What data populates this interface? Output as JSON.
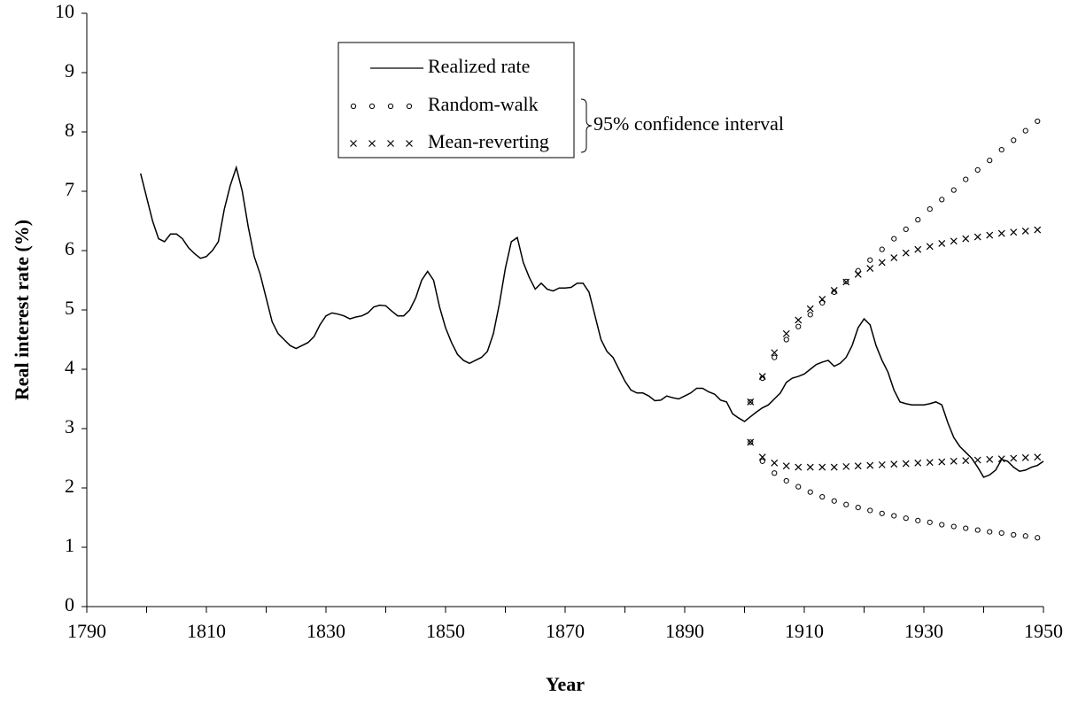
{
  "chart_data": {
    "type": "line",
    "xlabel": "Year",
    "ylabel": "Real interest rate (%)",
    "xlim": [
      1790,
      1950
    ],
    "xticks": [
      1790,
      1810,
      1830,
      1850,
      1870,
      1890,
      1910,
      1930,
      1950
    ],
    "xminorticks": [
      1800,
      1820,
      1840,
      1860,
      1880,
      1900,
      1920,
      1940
    ],
    "ylim": [
      0,
      10
    ],
    "yticks": [
      0,
      1,
      2,
      3,
      4,
      5,
      6,
      7,
      8,
      9,
      10
    ],
    "grid": false,
    "legend": "top-center",
    "annotation": "95% confidence interval",
    "series": [
      {
        "name": "Realized rate",
        "style": "line",
        "color": "#000000",
        "x": [
          1799,
          1801,
          1802,
          1803,
          1804,
          1805,
          1806,
          1807,
          1808,
          1809,
          1810,
          1811,
          1812,
          1813,
          1814,
          1815,
          1816,
          1817,
          1818,
          1819,
          1820,
          1821,
          1822,
          1823,
          1824,
          1825,
          1826,
          1827,
          1828,
          1829,
          1830,
          1831,
          1832,
          1833,
          1834,
          1835,
          1836,
          1837,
          1838,
          1839,
          1840,
          1841,
          1842,
          1843,
          1844,
          1845,
          1846,
          1847,
          1848,
          1849,
          1850,
          1851,
          1852,
          1853,
          1854,
          1855,
          1856,
          1857,
          1858,
          1859,
          1860,
          1861,
          1862,
          1863,
          1864,
          1865,
          1866,
          1867,
          1868,
          1869,
          1870,
          1871,
          1872,
          1873,
          1874,
          1875,
          1876,
          1877,
          1878,
          1879,
          1880,
          1881,
          1882,
          1883,
          1884,
          1885,
          1886,
          1887,
          1888,
          1889,
          1890,
          1891,
          1892,
          1893,
          1894,
          1895,
          1896,
          1897,
          1898,
          1899,
          1900,
          1901,
          1902,
          1903,
          1904,
          1905,
          1906,
          1907,
          1908,
          1909,
          1910,
          1911,
          1912,
          1913,
          1914,
          1915,
          1916,
          1917,
          1918,
          1919,
          1920,
          1921,
          1922,
          1923,
          1924,
          1925,
          1926,
          1927,
          1928,
          1929,
          1930,
          1931,
          1932,
          1933,
          1934,
          1935,
          1936,
          1937,
          1938,
          1939,
          1940,
          1941,
          1942,
          1943,
          1944,
          1945,
          1946,
          1947,
          1948,
          1949,
          1950
        ],
        "values": [
          7.3,
          6.5,
          6.2,
          6.15,
          6.28,
          6.28,
          6.2,
          6.05,
          5.95,
          5.87,
          5.9,
          6.0,
          6.15,
          6.7,
          7.1,
          7.4,
          7.0,
          6.4,
          5.9,
          5.6,
          5.2,
          4.8,
          4.6,
          4.5,
          4.4,
          4.35,
          4.4,
          4.45,
          4.55,
          4.75,
          4.9,
          4.95,
          4.93,
          4.9,
          4.85,
          4.88,
          4.9,
          4.95,
          5.05,
          5.08,
          5.07,
          4.98,
          4.9,
          4.9,
          5.0,
          5.2,
          5.5,
          5.65,
          5.5,
          5.05,
          4.7,
          4.45,
          4.25,
          4.15,
          4.1,
          4.15,
          4.2,
          4.3,
          4.6,
          5.1,
          5.7,
          6.15,
          6.22,
          5.8,
          5.55,
          5.35,
          5.45,
          5.35,
          5.32,
          5.37,
          5.37,
          5.38,
          5.45,
          5.45,
          5.3,
          4.9,
          4.5,
          4.3,
          4.2,
          4.0,
          3.8,
          3.65,
          3.6,
          3.6,
          3.55,
          3.47,
          3.48,
          3.55,
          3.52,
          3.5,
          3.55,
          3.6,
          3.68,
          3.68,
          3.62,
          3.58,
          3.48,
          3.45,
          3.25,
          3.18,
          3.12,
          3.2,
          3.28,
          3.35,
          3.4,
          3.5,
          3.6,
          3.78,
          3.85,
          3.88,
          3.92,
          4.0,
          4.08,
          4.12,
          4.15,
          4.05,
          4.1,
          4.2,
          4.4,
          4.7,
          4.85,
          4.75,
          4.4,
          4.15,
          3.95,
          3.65,
          3.45,
          3.42,
          3.4,
          3.4,
          3.4,
          3.42,
          3.45,
          3.4,
          3.1,
          2.85,
          2.7,
          2.6,
          2.5,
          2.35,
          2.18,
          2.22,
          2.3,
          2.48,
          2.45,
          2.35,
          2.28,
          2.3,
          2.35,
          2.38,
          2.45
        ]
      },
      {
        "name": "Random-walk",
        "style": "circle",
        "color": "#000000",
        "x": [
          1901,
          1903,
          1905,
          1907,
          1909,
          1911,
          1913,
          1915,
          1917,
          1919,
          1921,
          1923,
          1925,
          1927,
          1929,
          1931,
          1933,
          1935,
          1937,
          1939,
          1941,
          1943,
          1945,
          1947,
          1949
        ],
        "upper": [
          3.45,
          3.85,
          4.2,
          4.5,
          4.72,
          4.92,
          5.12,
          5.3,
          5.48,
          5.66,
          5.84,
          6.02,
          6.2,
          6.36,
          6.52,
          6.7,
          6.86,
          7.02,
          7.2,
          7.36,
          7.52,
          7.7,
          7.86,
          8.02,
          8.18
        ],
        "lower": [
          2.77,
          2.45,
          2.25,
          2.12,
          2.02,
          1.93,
          1.85,
          1.78,
          1.72,
          1.67,
          1.62,
          1.57,
          1.53,
          1.49,
          1.45,
          1.42,
          1.38,
          1.35,
          1.32,
          1.29,
          1.26,
          1.24,
          1.21,
          1.19,
          1.16
        ]
      },
      {
        "name": "Mean-reverting",
        "style": "cross",
        "color": "#000000",
        "x": [
          1901,
          1903,
          1905,
          1907,
          1909,
          1911,
          1913,
          1915,
          1917,
          1919,
          1921,
          1923,
          1925,
          1927,
          1929,
          1931,
          1933,
          1935,
          1937,
          1939,
          1941,
          1943,
          1945,
          1947,
          1949
        ],
        "upper": [
          3.45,
          3.88,
          4.28,
          4.6,
          4.83,
          5.02,
          5.18,
          5.33,
          5.47,
          5.6,
          5.7,
          5.8,
          5.88,
          5.96,
          6.02,
          6.07,
          6.12,
          6.16,
          6.2,
          6.23,
          6.26,
          6.29,
          6.31,
          6.33,
          6.35
        ],
        "lower": [
          2.77,
          2.52,
          2.42,
          2.37,
          2.35,
          2.35,
          2.35,
          2.35,
          2.36,
          2.37,
          2.38,
          2.39,
          2.4,
          2.41,
          2.42,
          2.43,
          2.44,
          2.45,
          2.46,
          2.47,
          2.48,
          2.49,
          2.5,
          2.51,
          2.52
        ]
      }
    ]
  }
}
